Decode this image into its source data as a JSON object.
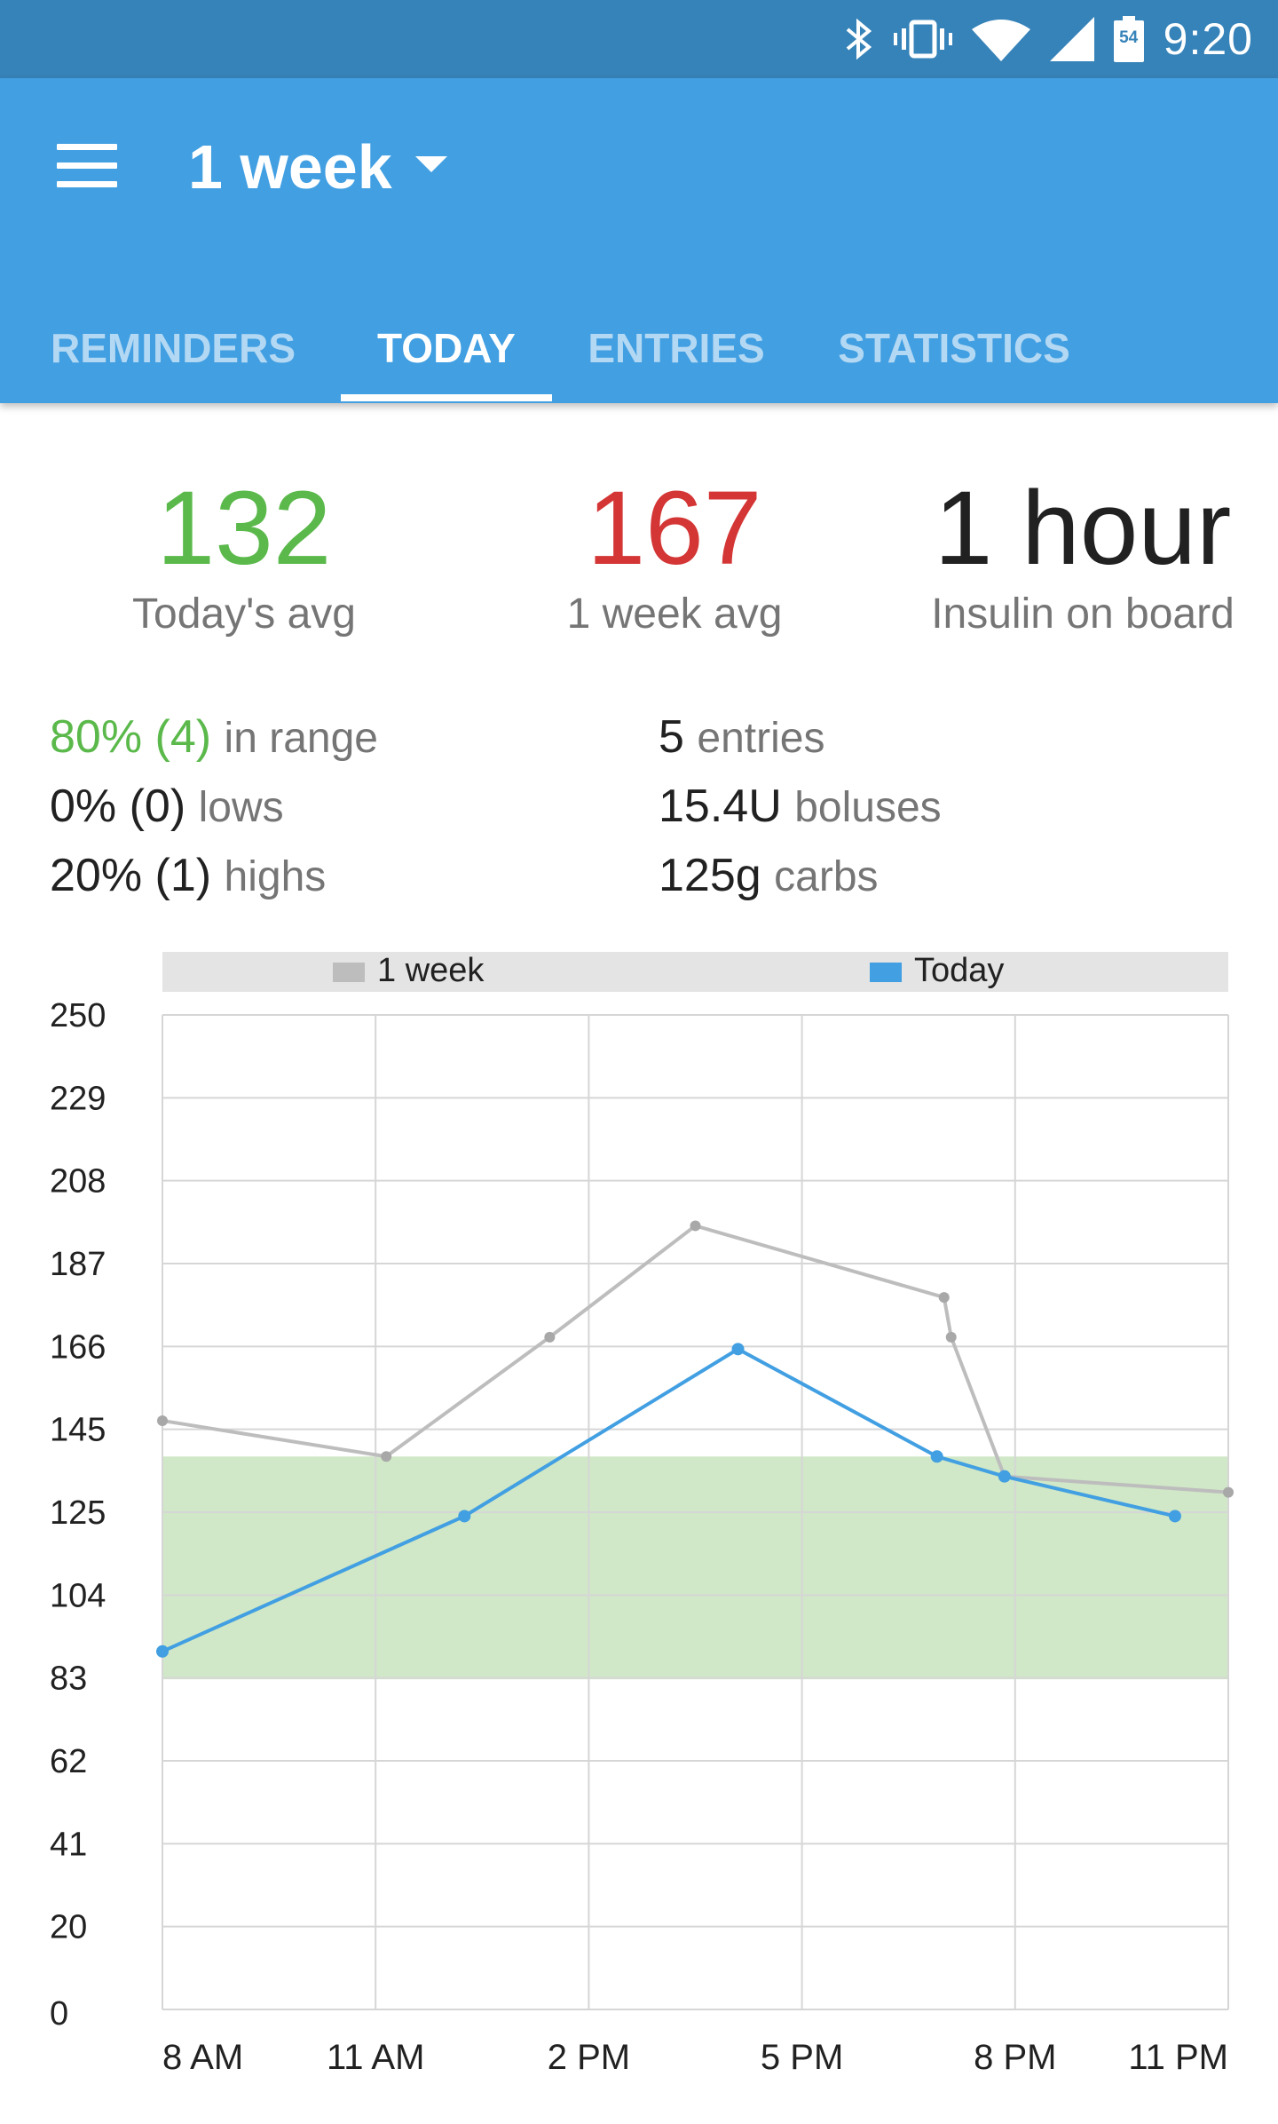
{
  "status_bar": {
    "time": "9:20",
    "battery_level": "54",
    "icons": [
      "bluetooth-icon",
      "vibrate-icon",
      "wifi-icon",
      "signal-icon",
      "battery-icon"
    ]
  },
  "app_bar": {
    "title": "1 week",
    "tabs": [
      {
        "label": "REMINDERS",
        "active": false
      },
      {
        "label": "TODAY",
        "active": true
      },
      {
        "label": "ENTRIES",
        "active": false
      },
      {
        "label": "STATISTICS",
        "active": false
      }
    ]
  },
  "summary": {
    "today_avg": {
      "value": "132",
      "label": "Today's avg",
      "color": "#5bb94b"
    },
    "week_avg": {
      "value": "167",
      "label": "1 week avg",
      "color": "#d43535"
    },
    "iob": {
      "value": "1 hour",
      "label": "Insulin on board",
      "color": "#212121"
    }
  },
  "details": {
    "in_range": {
      "value": "80% (4)",
      "label": "in range"
    },
    "lows": {
      "value": "0% (0)",
      "label": "lows"
    },
    "highs": {
      "value": "20% (1)",
      "label": "highs"
    },
    "entries": {
      "value": "5",
      "label": "entries"
    },
    "boluses": {
      "value": "15.4U",
      "label": "boluses"
    },
    "carbs": {
      "value": "125g",
      "label": "carbs"
    }
  },
  "colors": {
    "accent": "#419fe2",
    "status": "#3683b9",
    "in_range": "#5bb94b",
    "high": "#d43535"
  },
  "chart_data": {
    "type": "line",
    "legend": [
      {
        "name": "1 week",
        "color": "#bdbdbd"
      },
      {
        "name": "Today",
        "color": "#419fe2"
      }
    ],
    "legend_position": "top",
    "y_ticks": [
      "250",
      "229",
      "208",
      "187",
      "166",
      "145",
      "125",
      "104",
      "83",
      "62",
      "41",
      "20",
      "0"
    ],
    "ylim": [
      0,
      250
    ],
    "x_ticks": [
      "8 AM",
      "11 AM",
      "2 PM",
      "5 PM",
      "8 PM",
      "11 PM"
    ],
    "xlim_hours": [
      8,
      23
    ],
    "grid": true,
    "target_range": [
      83,
      139
    ],
    "series": [
      {
        "name": "1 week",
        "color": "#bdbdbd",
        "x": [
          8.0,
          11.15,
          13.45,
          15.5,
          19.0,
          19.1,
          19.85,
          23.0
        ],
        "y": [
          148,
          139,
          169,
          197,
          179,
          169,
          134,
          130
        ]
      },
      {
        "name": "Today",
        "color": "#419fe2",
        "x": [
          8.0,
          12.25,
          16.1,
          18.9,
          19.85,
          22.25
        ],
        "y": [
          90,
          124,
          166,
          139,
          134,
          124
        ]
      }
    ]
  }
}
